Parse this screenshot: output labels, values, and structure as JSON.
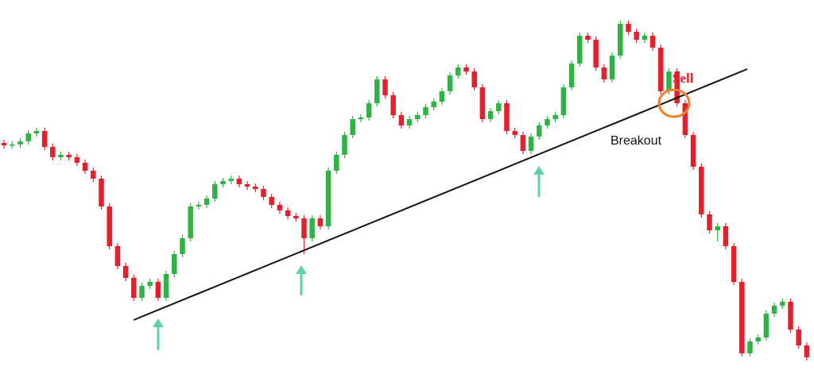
{
  "chart_data": {
    "type": "candlestick",
    "annotations": {
      "sell": "Sell",
      "breakout": "Breakout"
    },
    "up_color": "#2fb344",
    "down_color": "#e3202b",
    "ylim": [
      0,
      471
    ],
    "open": [
      291,
      288,
      289,
      293,
      303,
      306,
      286,
      273,
      276,
      273,
      266,
      256,
      246,
      211,
      161,
      136,
      121,
      96,
      111,
      116,
      96,
      126,
      151,
      171,
      211,
      213,
      221,
      239,
      243,
      246,
      239,
      236,
      233,
      223,
      213,
      206,
      199,
      196,
      171,
      196,
      186,
      256,
      276,
      301,
      321,
      323,
      341,
      371,
      351,
      326,
      313,
      321,
      326,
      336,
      343,
      356,
      376,
      386,
      381,
      361,
      321,
      331,
      341,
      306,
      301,
      281,
      299,
      313,
      321,
      326,
      361,
      391,
      426,
      421,
      386,
      371,
      401,
      441,
      431,
      421,
      426,
      411,
      356,
      381,
      341,
      301,
      261,
      201,
      181,
      186,
      161,
      116,
      26,
      41,
      46,
      76,
      86,
      91,
      56,
      36
    ],
    "high": [
      295,
      293,
      297,
      307,
      310,
      310,
      290,
      280,
      280,
      277,
      270,
      260,
      250,
      215,
      165,
      140,
      125,
      115,
      120,
      120,
      130,
      155,
      175,
      215,
      217,
      225,
      243,
      247,
      250,
      250,
      243,
      240,
      237,
      227,
      217,
      210,
      203,
      200,
      200,
      200,
      260,
      280,
      305,
      325,
      327,
      345,
      375,
      375,
      355,
      330,
      325,
      330,
      340,
      347,
      360,
      380,
      390,
      390,
      385,
      365,
      335,
      345,
      345,
      310,
      305,
      303,
      317,
      325,
      330,
      365,
      395,
      430,
      430,
      425,
      390,
      405,
      445,
      445,
      435,
      430,
      430,
      415,
      385,
      385,
      345,
      305,
      265,
      205,
      190,
      190,
      165,
      120,
      45,
      50,
      80,
      90,
      95,
      95,
      60,
      40
    ],
    "low": [
      284,
      284,
      285,
      289,
      299,
      282,
      269,
      269,
      269,
      262,
      252,
      242,
      207,
      157,
      132,
      117,
      92,
      92,
      107,
      92,
      92,
      122,
      147,
      167,
      207,
      209,
      217,
      235,
      239,
      235,
      232,
      229,
      219,
      209,
      202,
      195,
      192,
      151,
      167,
      182,
      182,
      252,
      272,
      297,
      317,
      319,
      337,
      347,
      322,
      309,
      309,
      317,
      322,
      332,
      339,
      352,
      372,
      377,
      357,
      317,
      317,
      327,
      302,
      297,
      277,
      277,
      295,
      309,
      317,
      322,
      357,
      387,
      417,
      382,
      367,
      367,
      397,
      427,
      417,
      417,
      407,
      352,
      352,
      337,
      297,
      257,
      197,
      177,
      167,
      157,
      112,
      22,
      22,
      37,
      42,
      72,
      82,
      52,
      32,
      17
    ],
    "close": [
      288,
      289,
      293,
      303,
      306,
      286,
      273,
      276,
      273,
      266,
      256,
      246,
      211,
      161,
      136,
      121,
      96,
      111,
      116,
      96,
      126,
      151,
      171,
      211,
      213,
      221,
      239,
      243,
      246,
      239,
      236,
      233,
      223,
      213,
      206,
      199,
      196,
      171,
      196,
      186,
      256,
      276,
      301,
      321,
      323,
      341,
      371,
      351,
      326,
      313,
      321,
      326,
      336,
      343,
      356,
      376,
      386,
      381,
      361,
      321,
      331,
      341,
      306,
      301,
      281,
      299,
      313,
      321,
      326,
      361,
      391,
      426,
      421,
      386,
      371,
      401,
      441,
      431,
      421,
      426,
      411,
      356,
      381,
      341,
      301,
      261,
      201,
      181,
      186,
      161,
      116,
      26,
      41,
      46,
      76,
      86,
      91,
      56,
      36,
      21
    ]
  }
}
